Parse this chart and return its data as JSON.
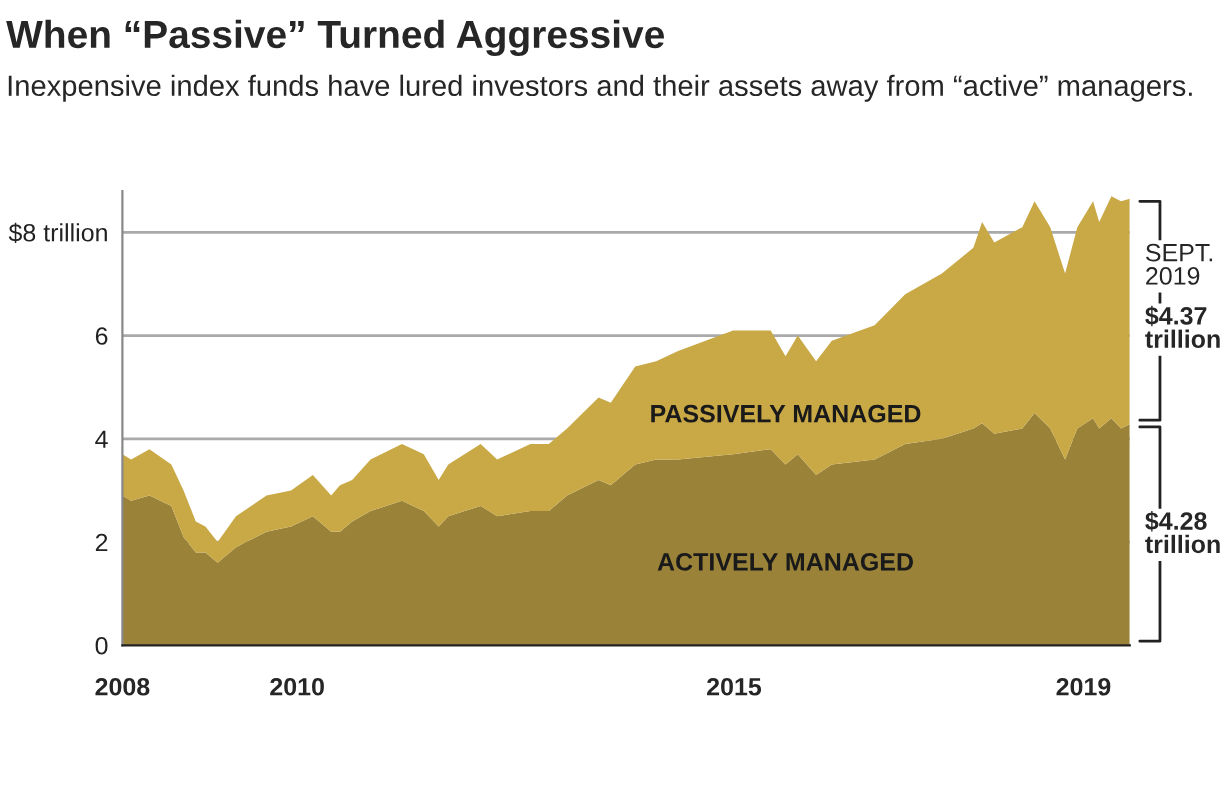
{
  "chart_data": {
    "type": "area",
    "stacked": true,
    "title": "When “Passive” Turned Aggressive",
    "subtitle": "Inexpensive index funds have lured investors and their assets away from “active” managers.",
    "x": [
      2008.0,
      2008.1,
      2008.31,
      2008.56,
      2008.7,
      2008.84,
      2008.95,
      2009.09,
      2009.3,
      2009.65,
      2009.93,
      2010.18,
      2010.39,
      2010.49,
      2010.63,
      2010.84,
      2011.2,
      2011.45,
      2011.62,
      2011.73,
      2012.1,
      2012.29,
      2012.67,
      2012.88,
      2013.09,
      2013.45,
      2013.59,
      2013.87,
      2014.11,
      2014.36,
      2014.99,
      2015.42,
      2015.59,
      2015.73,
      2015.94,
      2016.12,
      2016.61,
      2016.96,
      2017.38,
      2017.74,
      2017.84,
      2017.98,
      2018.3,
      2018.44,
      2018.62,
      2018.79,
      2018.93,
      2019.11,
      2019.18,
      2019.32,
      2019.43,
      2019.53
    ],
    "series": [
      {
        "name": "ACTIVELY MANAGED",
        "color": "#9a8338",
        "values": [
          2.9,
          2.8,
          2.9,
          2.7,
          2.1,
          1.8,
          1.8,
          1.6,
          1.9,
          2.2,
          2.3,
          2.5,
          2.2,
          2.2,
          2.4,
          2.6,
          2.8,
          2.6,
          2.3,
          2.5,
          2.7,
          2.5,
          2.6,
          2.6,
          2.9,
          3.2,
          3.1,
          3.5,
          3.6,
          3.6,
          3.7,
          3.8,
          3.5,
          3.7,
          3.3,
          3.5,
          3.6,
          3.9,
          4.0,
          4.2,
          4.3,
          4.1,
          4.2,
          4.5,
          4.2,
          3.6,
          4.2,
          4.4,
          4.2,
          4.4,
          4.2,
          4.28
        ]
      },
      {
        "name": "PASSIVELY MANAGED",
        "color": "#c9a846",
        "values": [
          0.8,
          0.8,
          0.9,
          0.8,
          0.9,
          0.6,
          0.5,
          0.4,
          0.6,
          0.7,
          0.7,
          0.8,
          0.7,
          0.9,
          0.8,
          1.0,
          1.1,
          1.1,
          0.9,
          1.0,
          1.2,
          1.1,
          1.3,
          1.3,
          1.3,
          1.6,
          1.6,
          1.9,
          1.9,
          2.1,
          2.4,
          2.3,
          2.1,
          2.3,
          2.2,
          2.4,
          2.6,
          2.9,
          3.2,
          3.5,
          3.9,
          3.7,
          3.9,
          4.1,
          3.9,
          3.6,
          3.9,
          4.2,
          4.0,
          4.3,
          4.4,
          4.37
        ]
      }
    ],
    "xlim": [
      2008,
      2019.53
    ],
    "xticks": [
      2008,
      2010,
      2015,
      2019
    ],
    "ylim": [
      0,
      8.8
    ],
    "yticks": [
      0,
      2,
      4,
      6,
      {
        "value": 8,
        "label": "$8 trillion"
      }
    ],
    "grid": "y",
    "annotations": [
      "SEPT. 2019",
      "$4.37 trillion",
      "$4.28 trillion"
    ]
  }
}
